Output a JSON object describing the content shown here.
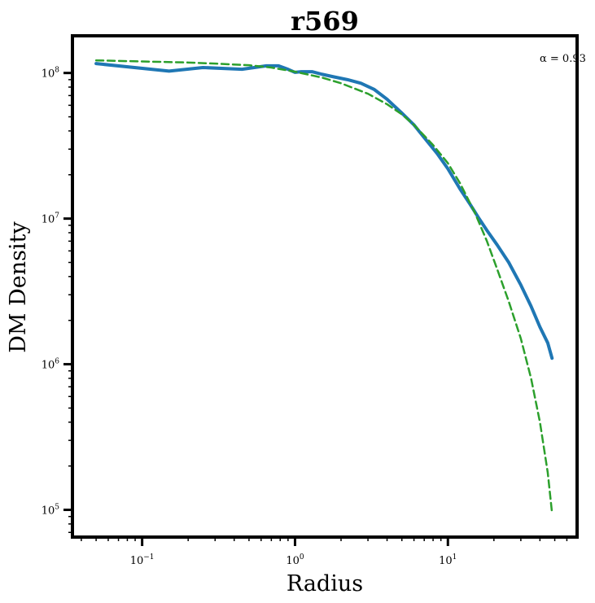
{
  "chart_data": {
    "type": "line",
    "title": "r569",
    "xlabel": "Radius",
    "ylabel": "DM Density",
    "x_scale": "log",
    "y_scale": "log",
    "xlim": [
      0.035,
      70
    ],
    "ylim": [
      65000,
      180000000
    ],
    "grid": false,
    "legend": "none",
    "annotation": "α = 0.93",
    "x_ticks": [
      {
        "value": 0.1,
        "base": "10",
        "exp": "−1"
      },
      {
        "value": 1,
        "base": "10",
        "exp": "0"
      },
      {
        "value": 10,
        "base": "10",
        "exp": "1"
      }
    ],
    "y_ticks": [
      {
        "value": 100000,
        "base": "10",
        "exp": "5"
      },
      {
        "value": 1000000,
        "base": "10",
        "exp": "6"
      },
      {
        "value": 10000000,
        "base": "10",
        "exp": "7"
      },
      {
        "value": 100000000,
        "base": "10",
        "exp": "8"
      }
    ],
    "series": [
      {
        "color": "#1f77b4",
        "style": "solid",
        "points": [
          [
            0.05,
            116000000
          ],
          [
            0.15,
            103000000
          ],
          [
            0.25,
            109000000
          ],
          [
            0.45,
            106000000
          ],
          [
            0.65,
            112000000
          ],
          [
            0.78,
            112000000
          ],
          [
            0.9,
            106000000
          ],
          [
            1.0,
            101000000
          ],
          [
            1.1,
            102000000
          ],
          [
            1.3,
            102000000
          ],
          [
            1.5,
            98000000
          ],
          [
            1.8,
            94000000
          ],
          [
            2.2,
            90000000
          ],
          [
            2.7,
            85000000
          ],
          [
            3.3,
            77000000
          ],
          [
            4.0,
            66000000
          ],
          [
            5.0,
            53000000
          ],
          [
            6.0,
            44000000
          ],
          [
            7.0,
            36000000
          ],
          [
            8.5,
            28000000
          ],
          [
            10.0,
            22000000
          ],
          [
            12.0,
            16000000
          ],
          [
            14.0,
            12500000
          ],
          [
            16.0,
            10000000
          ],
          [
            18.0,
            8300000
          ],
          [
            21.0,
            6600000
          ],
          [
            25.0,
            5000000
          ],
          [
            30.0,
            3500000
          ],
          [
            35.0,
            2500000
          ],
          [
            40.0,
            1800000
          ],
          [
            45.0,
            1400000
          ],
          [
            48.0,
            1100000
          ]
        ]
      },
      {
        "color": "#2ca02c",
        "style": "dashed",
        "points": [
          [
            0.05,
            122000000
          ],
          [
            0.1,
            120000000
          ],
          [
            0.2,
            118000000
          ],
          [
            0.3,
            116000000
          ],
          [
            0.5,
            113000000
          ],
          [
            0.7,
            109000000
          ],
          [
            1.0,
            102000000
          ],
          [
            1.5,
            93000000
          ],
          [
            2.0,
            85000000
          ],
          [
            3.0,
            72000000
          ],
          [
            4.0,
            61000000
          ],
          [
            5.0,
            52000000
          ],
          [
            6.0,
            44000000
          ],
          [
            8.0,
            32000000
          ],
          [
            10.0,
            24000000
          ],
          [
            12.0,
            17500000
          ],
          [
            15.0,
            11000000
          ],
          [
            18.0,
            7000000
          ],
          [
            21.0,
            4500000
          ],
          [
            25.0,
            2700000
          ],
          [
            30.0,
            1500000
          ],
          [
            35.0,
            800000
          ],
          [
            40.0,
            400000
          ],
          [
            45.0,
            180000
          ],
          [
            48.0,
            95000
          ]
        ]
      }
    ]
  }
}
